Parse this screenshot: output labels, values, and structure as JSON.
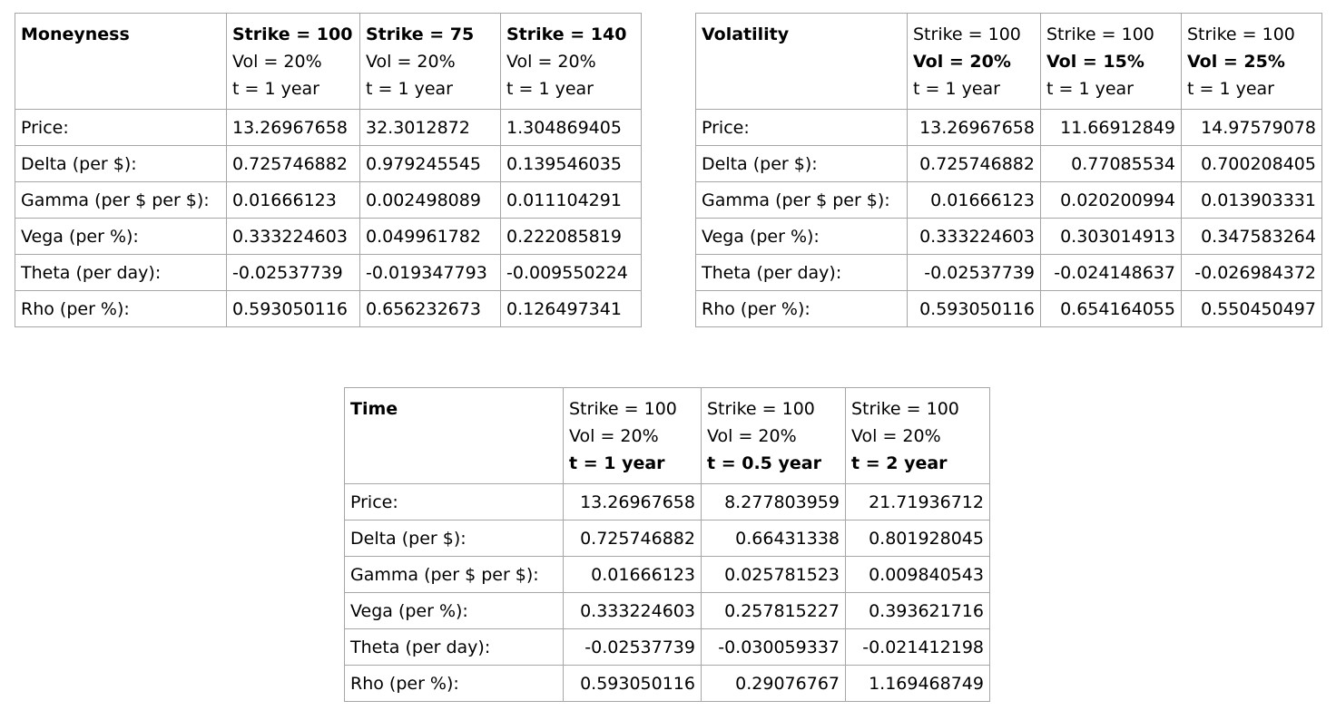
{
  "moneyness": {
    "title": "Moneyness",
    "columns": [
      {
        "strike": "Strike = 100",
        "vol": "Vol = 20%",
        "time": "t = 1 year"
      },
      {
        "strike": "Strike = 75",
        "vol": "Vol = 20%",
        "time": "t = 1 year"
      },
      {
        "strike": "Strike = 140",
        "vol": "Vol = 20%",
        "time": "t = 1 year"
      }
    ],
    "rows": [
      {
        "label": "Price:",
        "values": [
          "13.26967658",
          "32.3012872",
          "1.304869405"
        ]
      },
      {
        "label": "Delta (per $):",
        "values": [
          "0.725746882",
          "0.979245545",
          "0.139546035"
        ]
      },
      {
        "label": "Gamma (per $ per $):",
        "values": [
          "0.01666123",
          "0.002498089",
          "0.011104291"
        ]
      },
      {
        "label": "Vega (per %):",
        "values": [
          "0.333224603",
          "0.049961782",
          "0.222085819"
        ]
      },
      {
        "label": "Theta (per day):",
        "values": [
          "-0.02537739",
          "-0.019347793",
          "-0.009550224"
        ]
      },
      {
        "label": "Rho (per %):",
        "values": [
          "0.593050116",
          "0.656232673",
          "0.126497341"
        ]
      }
    ]
  },
  "volatility": {
    "title": "Volatility",
    "columns": [
      {
        "strike": "Strike = 100",
        "vol": "Vol = 20%",
        "time": "t = 1 year"
      },
      {
        "strike": "Strike = 100",
        "vol": "Vol = 15%",
        "time": "t = 1 year"
      },
      {
        "strike": "Strike = 100",
        "vol": "Vol = 25%",
        "time": "t = 1 year"
      }
    ],
    "rows": [
      {
        "label": "Price:",
        "values": [
          "13.26967658",
          "11.66912849",
          "14.97579078"
        ]
      },
      {
        "label": "Delta (per $):",
        "values": [
          "0.725746882",
          "0.77085534",
          "0.700208405"
        ]
      },
      {
        "label": "Gamma (per $ per $):",
        "values": [
          "0.01666123",
          "0.020200994",
          "0.013903331"
        ]
      },
      {
        "label": "Vega (per %):",
        "values": [
          "0.333224603",
          "0.303014913",
          "0.347583264"
        ]
      },
      {
        "label": "Theta (per day):",
        "values": [
          "-0.02537739",
          "-0.024148637",
          "-0.026984372"
        ]
      },
      {
        "label": "Rho (per %):",
        "values": [
          "0.593050116",
          "0.654164055",
          "0.550450497"
        ]
      }
    ]
  },
  "time": {
    "title": "Time",
    "columns": [
      {
        "strike": "Strike = 100",
        "vol": "Vol = 20%",
        "time": "t = 1 year"
      },
      {
        "strike": "Strike = 100",
        "vol": "Vol = 20%",
        "time": "t = 0.5 year"
      },
      {
        "strike": "Strike = 100",
        "vol": "Vol = 20%",
        "time": "t = 2 year"
      }
    ],
    "rows": [
      {
        "label": "Price:",
        "values": [
          "13.26967658",
          "8.277803959",
          "21.71936712"
        ]
      },
      {
        "label": "Delta (per $):",
        "values": [
          "0.725746882",
          "0.66431338",
          "0.801928045"
        ]
      },
      {
        "label": "Gamma (per $ per $):",
        "values": [
          "0.01666123",
          "0.025781523",
          "0.009840543"
        ]
      },
      {
        "label": "Vega (per %):",
        "values": [
          "0.333224603",
          "0.257815227",
          "0.393621716"
        ]
      },
      {
        "label": "Theta (per day):",
        "values": [
          "-0.02537739",
          "-0.030059337",
          "-0.021412198"
        ]
      },
      {
        "label": "Rho (per %):",
        "values": [
          "0.593050116",
          "0.29076767",
          "1.169468749"
        ]
      }
    ]
  }
}
